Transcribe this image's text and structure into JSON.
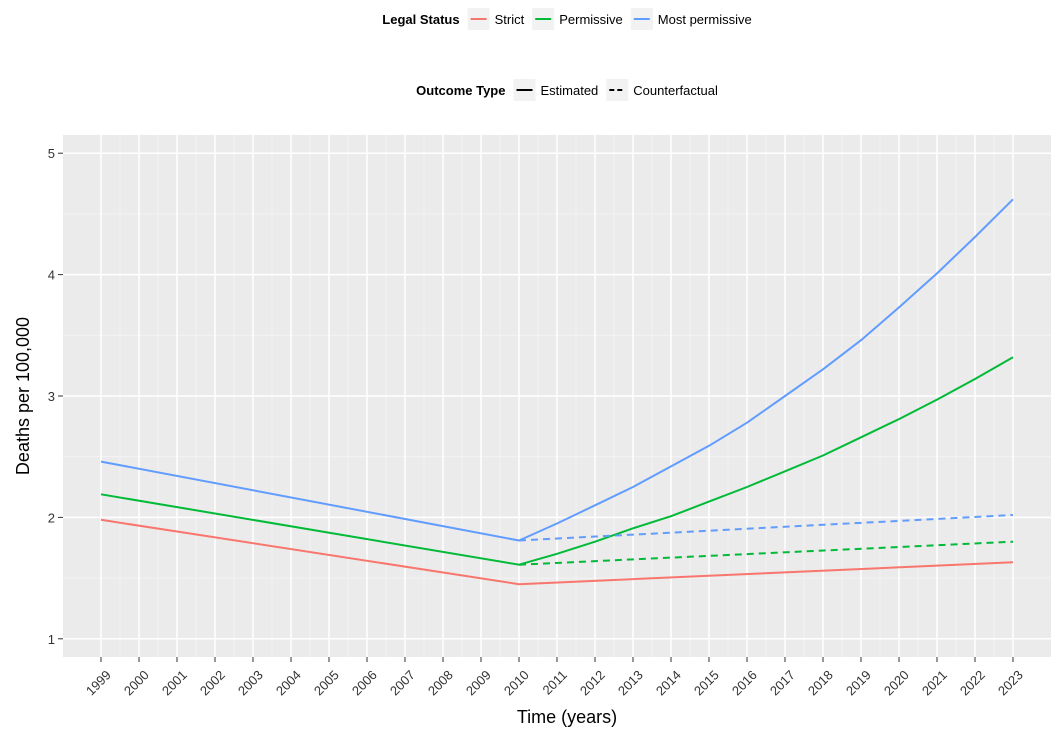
{
  "chart_data": {
    "type": "line",
    "title": "",
    "xlabel": "Time (years)",
    "ylabel": "Deaths per 100,000",
    "xlim": [
      1998.0,
      2024.0
    ],
    "ylim": [
      0.85,
      5.15
    ],
    "x_ticks": [
      "1999",
      "2000",
      "2001",
      "2002",
      "2003",
      "2004",
      "2005",
      "2006",
      "2007",
      "2008",
      "2009",
      "2010",
      "2011",
      "2012",
      "2013",
      "2014",
      "2015",
      "2016",
      "2017",
      "2018",
      "2019",
      "2020",
      "2021",
      "2022",
      "2023"
    ],
    "y_ticks": [
      "1",
      "2",
      "3",
      "4",
      "5"
    ],
    "grid": true,
    "legend_position": "top",
    "legends": [
      {
        "title": "Legal Status",
        "entries": [
          {
            "label": "Strict",
            "color": "#F8766D"
          },
          {
            "label": "Permissive",
            "color": "#00BA38"
          },
          {
            "label": "Most permissive",
            "color": "#619CFF"
          }
        ]
      },
      {
        "title": "Outcome Type",
        "entries": [
          {
            "label": "Estimated",
            "line": "solid"
          },
          {
            "label": "Counterfactual",
            "line": "dashed"
          }
        ]
      }
    ],
    "series": [
      {
        "name": "Strict",
        "outcome": "Estimated",
        "color": "#F8766D",
        "dash": false,
        "x": [
          1999,
          2010,
          2023
        ],
        "y": [
          1.98,
          1.45,
          1.63
        ]
      },
      {
        "name": "Permissive",
        "outcome": "Estimated",
        "color": "#00BA38",
        "dash": false,
        "x": [
          1999,
          2010,
          2011,
          2012,
          2013,
          2014,
          2015,
          2016,
          2017,
          2018,
          2019,
          2020,
          2021,
          2022,
          2023
        ],
        "y": [
          2.19,
          1.61,
          1.7,
          1.8,
          1.91,
          2.01,
          2.13,
          2.25,
          2.38,
          2.51,
          2.66,
          2.81,
          2.97,
          3.14,
          3.32
        ]
      },
      {
        "name": "Most permissive",
        "outcome": "Estimated",
        "color": "#619CFF",
        "dash": false,
        "x": [
          1999,
          2010,
          2011,
          2012,
          2013,
          2014,
          2015,
          2016,
          2017,
          2018,
          2019,
          2020,
          2021,
          2022,
          2023
        ],
        "y": [
          2.46,
          1.81,
          1.95,
          2.1,
          2.25,
          2.42,
          2.59,
          2.78,
          3.0,
          3.22,
          3.46,
          3.73,
          4.01,
          4.31,
          4.62
        ]
      },
      {
        "name": "Permissive",
        "outcome": "Counterfactual",
        "color": "#00BA38",
        "dash": true,
        "x": [
          2010,
          2023
        ],
        "y": [
          1.61,
          1.8
        ]
      },
      {
        "name": "Most permissive",
        "outcome": "Counterfactual",
        "color": "#619CFF",
        "dash": true,
        "x": [
          2010,
          2023
        ],
        "y": [
          1.81,
          2.02
        ]
      }
    ]
  }
}
